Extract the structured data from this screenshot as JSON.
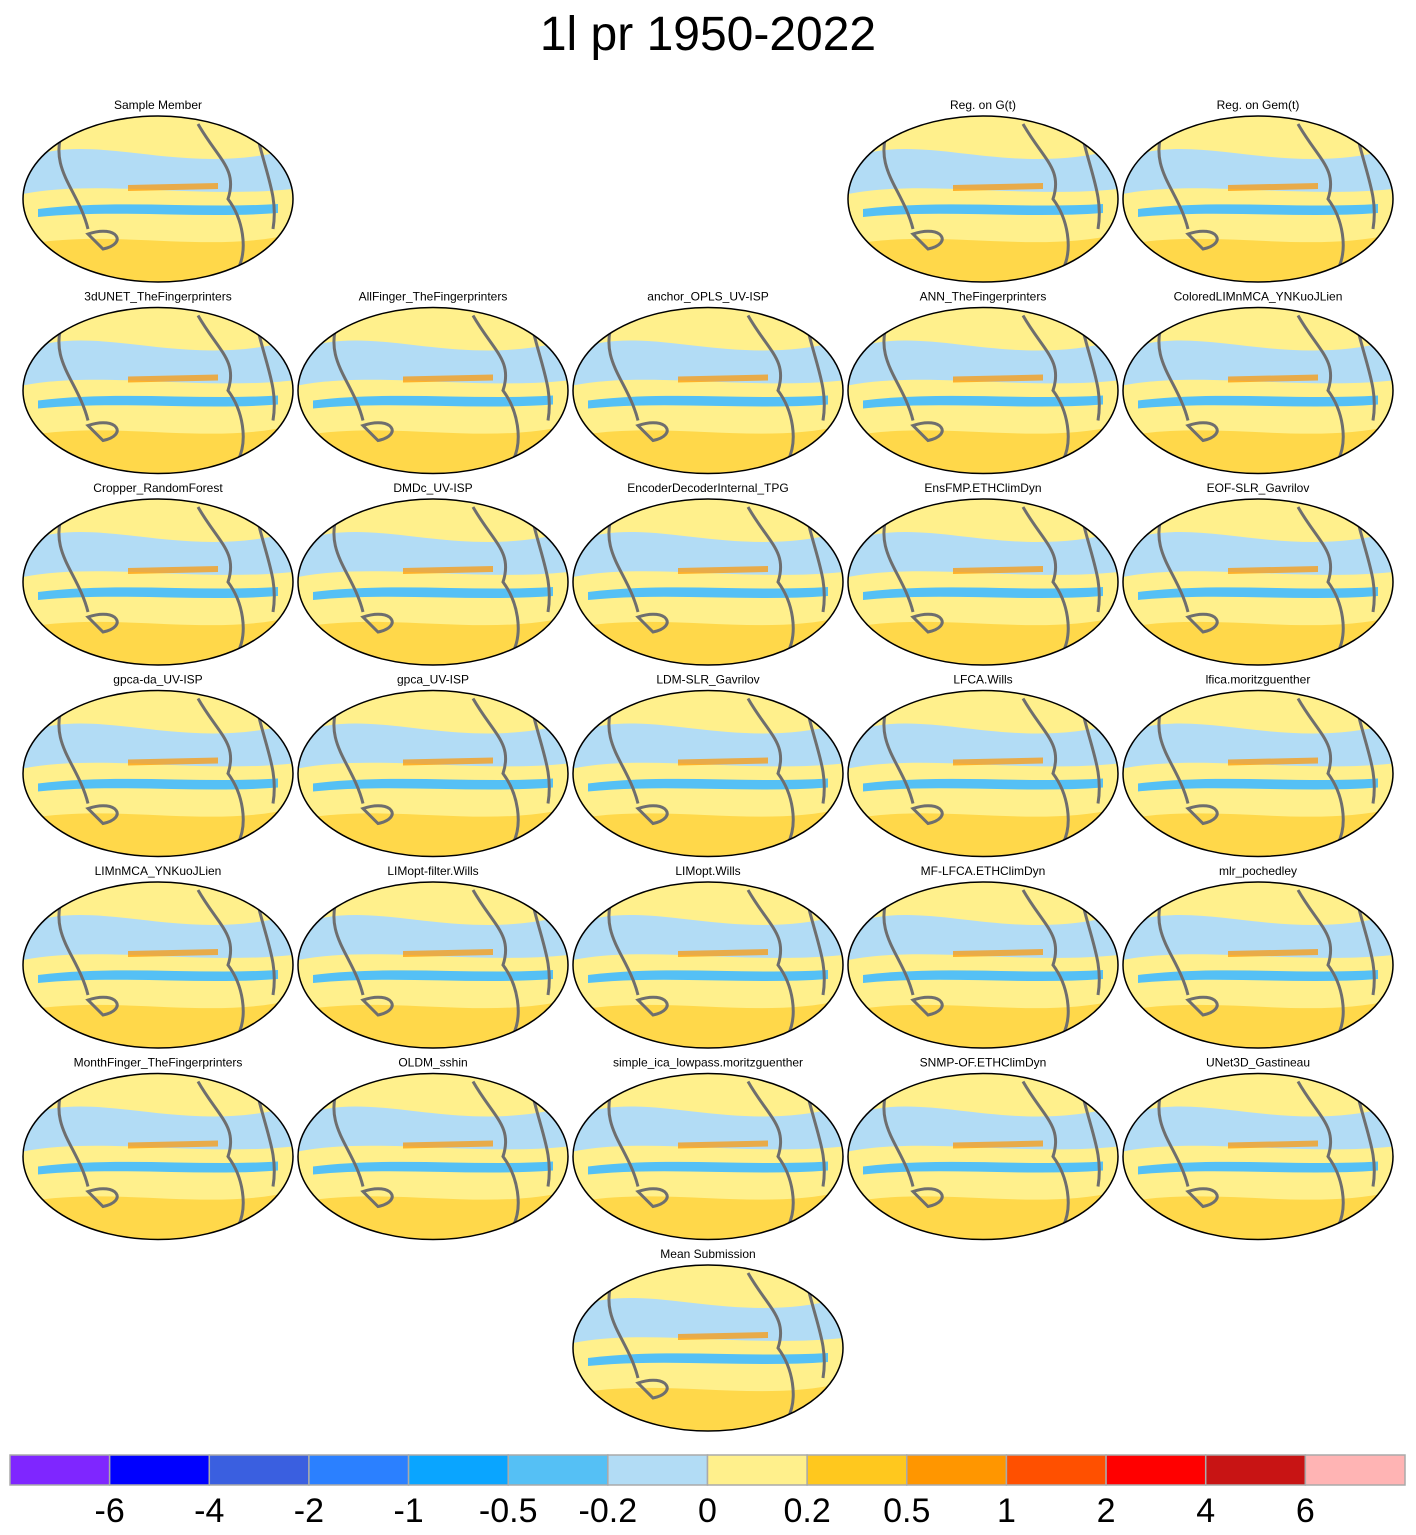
{
  "title": "1l pr 1950-2022",
  "panels": [
    "Sample Member",
    "Reg. on G(t)",
    "Reg. on Gem(t)",
    "3dUNET_TheFingerprinters",
    "AllFinger_TheFingerprinters",
    "anchor_OPLS_UV-ISP",
    "ANN_TheFingerprinters",
    "ColoredLIMnMCA_YNKuoJLien",
    "Cropper_RandomForest",
    "DMDc_UV-ISP",
    "EncoderDecoderInternal_TPG",
    "EnsFMP.ETHClimDyn",
    "EOF-SLR_Gavrilov",
    "gpca-da_UV-ISP",
    "gpca_UV-ISP",
    "LDM-SLR_Gavrilov",
    "LFCA.Wills",
    "lfica.moritzguenther",
    "LIMnMCA_YNKuoJLien",
    "LIMopt-filter.Wills",
    "LIMopt.Wills",
    "MF-LFCA.ETHClimDyn",
    "mlr_pochedley",
    "MonthFinger_TheFingerprinters",
    "OLDM_sshin",
    "simple_ica_lowpass.moritzguenther",
    "SNMP-OF.ETHClimDyn",
    "UNet3D_Gastineau",
    "Mean Submission"
  ],
  "colorbar": {
    "levels": [
      -6,
      -4,
      -2,
      -1,
      -0.5,
      -0.2,
      0,
      0.2,
      0.5,
      1,
      2,
      4,
      6
    ],
    "colors": [
      "#7f26ff",
      "#0000ff",
      "#3a5fe0",
      "#2b80ff",
      "#0aa5ff",
      "#55c0f5",
      "#b2dcf5",
      "#fff08c",
      "#ffc81e",
      "#ff9600",
      "#ff5000",
      "#ff0000",
      "#c81414",
      "#ffb4b4"
    ]
  }
}
